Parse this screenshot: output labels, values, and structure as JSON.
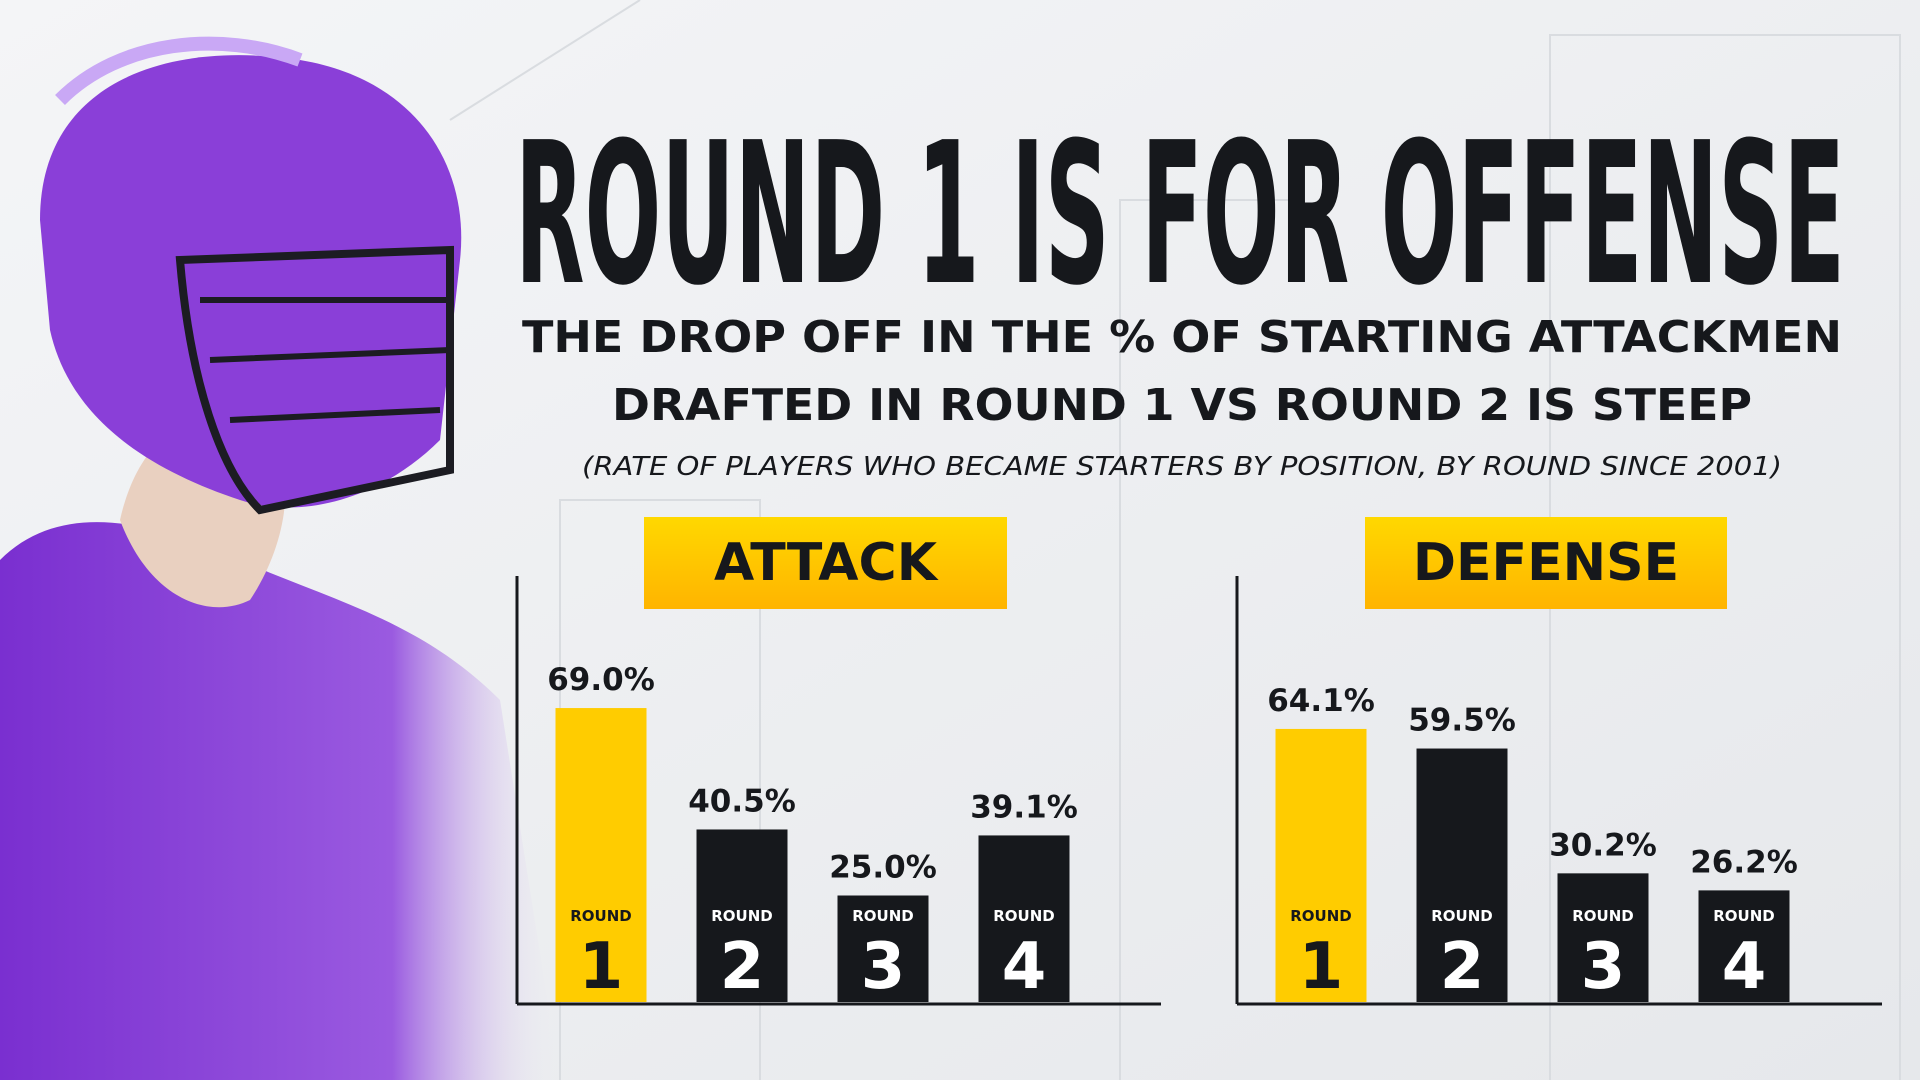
{
  "title": "ROUND 1 IS FOR OFFENSE",
  "subtitle_lines": [
    "THE DROP OFF IN THE % OF STARTING ATTACKMEN",
    "DRAFTED IN ROUND 1 VS ROUND 2 IS STEEP"
  ],
  "note": "(RATE OF PLAYERS WHO BECAME STARTERS BY POSITION, BY ROUND SINCE 2001)",
  "chart_data": [
    {
      "type": "bar",
      "title": "ATTACK",
      "category_label": "ROUND",
      "categories": [
        "1",
        "2",
        "3",
        "4"
      ],
      "values": [
        69.0,
        40.5,
        25.0,
        39.1
      ],
      "value_labels": [
        "69.0%",
        "40.5%",
        "25.0%",
        "39.1%"
      ],
      "colors": [
        "#ffcc00",
        "#16181c",
        "#16181c",
        "#16181c"
      ]
    },
    {
      "type": "bar",
      "title": "DEFENSE",
      "category_label": "ROUND",
      "categories": [
        "1",
        "2",
        "3",
        "4"
      ],
      "values": [
        64.1,
        59.5,
        30.2,
        26.2
      ],
      "value_labels": [
        "64.1%",
        "59.5%",
        "30.2%",
        "26.2%"
      ],
      "colors": [
        "#ffcc00",
        "#16181c",
        "#16181c",
        "#16181c"
      ]
    }
  ]
}
